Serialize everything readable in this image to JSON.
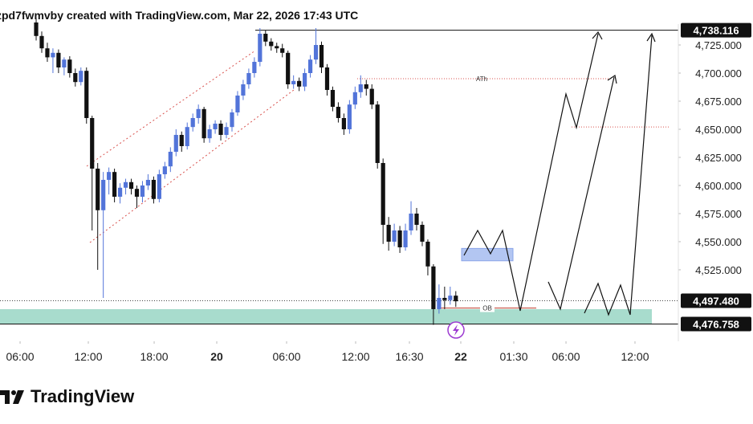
{
  "chart_data": {
    "type": "candlestick",
    "title": "zpd7fwmvby created with TradingView.com, Mar 22, 2026 17:43 UTC",
    "footer": "TradingView",
    "up_color": "#5274d9",
    "down_color": "#111111",
    "ylim": [
      4461.4,
      4765
    ],
    "yticks": [
      {
        "value": 4525,
        "label": "4,525.000"
      },
      {
        "value": 4550,
        "label": "4,550.000"
      },
      {
        "value": 4575,
        "label": "4,575.000"
      },
      {
        "value": 4600,
        "label": "4,600.000"
      },
      {
        "value": 4625,
        "label": "4,625.000"
      },
      {
        "value": 4650,
        "label": "4,650.000"
      },
      {
        "value": 4675,
        "label": "4,675.000"
      },
      {
        "value": 4700,
        "label": "4,700.000"
      },
      {
        "value": 4725,
        "label": "4,725.000"
      }
    ],
    "xlim": [
      -6.46,
      114.77
    ],
    "xticks": [
      {
        "value": -2.87,
        "label": "06:00"
      },
      {
        "value": 9.32,
        "label": "12:00"
      },
      {
        "value": 21.09,
        "label": "18:00"
      },
      {
        "value": 32.28,
        "label": "20"
      },
      {
        "value": 44.76,
        "label": "06:00"
      },
      {
        "value": 57.1,
        "label": "12:00"
      },
      {
        "value": 66.71,
        "label": "16:30"
      },
      {
        "value": 75.89,
        "label": "22"
      },
      {
        "value": 85.36,
        "label": "01:30"
      },
      {
        "value": 94.69,
        "label": "06:00"
      },
      {
        "value": 107.02,
        "label": "12:00"
      }
    ],
    "price_lines": [
      {
        "value": 4738.116,
        "label": "4,738.116"
      },
      {
        "value": 4497.48,
        "label": "4,497.480"
      },
      {
        "value": 4476.758,
        "label": "4,476.758"
      }
    ],
    "demand_zone": [
      4476.758,
      4490
    ],
    "target_box": [
      4533,
      4544
    ],
    "ath_level": {
      "value": 4695,
      "label": "ATh"
    },
    "ob_level": {
      "value": 4491,
      "label": "OB"
    },
    "resistance_level": 4652,
    "ohlc": [
      [
        4745,
        4749,
        4729,
        4733
      ],
      [
        4733,
        4737,
        4718,
        4722
      ],
      [
        4722,
        4727,
        4710,
        4714
      ],
      [
        4714,
        4722,
        4700,
        4718
      ],
      [
        4718,
        4721,
        4700,
        4705
      ],
      [
        4705,
        4714,
        4698,
        4712
      ],
      [
        4712,
        4715,
        4696,
        4700
      ],
      [
        4700,
        4704,
        4688,
        4692
      ],
      [
        4692,
        4705,
        4689,
        4702
      ],
      [
        4702,
        4705,
        4655,
        4660
      ],
      [
        4660,
        4662,
        4560,
        4615
      ],
      [
        4615,
        4620,
        4525,
        4578
      ],
      [
        4578,
        4612,
        4500,
        4605
      ],
      [
        4605,
        4616,
        4592,
        4612
      ],
      [
        4612,
        4615,
        4585,
        4590
      ],
      [
        4590,
        4602,
        4584,
        4598
      ],
      [
        4598,
        4606,
        4592,
        4603
      ],
      [
        4603,
        4606,
        4592,
        4597
      ],
      [
        4597,
        4600,
        4580,
        4590
      ],
      [
        4590,
        4604,
        4585,
        4600
      ],
      [
        4600,
        4610,
        4596,
        4605
      ],
      [
        4605,
        4608,
        4584,
        4588
      ],
      [
        4588,
        4614,
        4585,
        4610
      ],
      [
        4610,
        4621,
        4606,
        4617
      ],
      [
        4617,
        4634,
        4612,
        4630
      ],
      [
        4630,
        4650,
        4626,
        4645
      ],
      [
        4645,
        4648,
        4630,
        4635
      ],
      [
        4635,
        4656,
        4632,
        4652
      ],
      [
        4652,
        4664,
        4648,
        4660
      ],
      [
        4660,
        4672,
        4655,
        4668
      ],
      [
        4668,
        4670,
        4638,
        4642
      ],
      [
        4642,
        4654,
        4638,
        4650
      ],
      [
        4650,
        4658,
        4646,
        4655
      ],
      [
        4655,
        4658,
        4640,
        4645
      ],
      [
        4645,
        4656,
        4642,
        4652
      ],
      [
        4652,
        4668,
        4648,
        4665
      ],
      [
        4665,
        4684,
        4662,
        4680
      ],
      [
        4680,
        4694,
        4676,
        4690
      ],
      [
        4690,
        4704,
        4686,
        4700
      ],
      [
        4700,
        4714,
        4696,
        4710
      ],
      [
        4710,
        4740,
        4706,
        4735
      ],
      [
        4735,
        4738,
        4724,
        4728
      ],
      [
        4728,
        4731,
        4720,
        4724
      ],
      [
        4724,
        4727,
        4718,
        4722
      ],
      [
        4722,
        4726,
        4714,
        4718
      ],
      [
        4718,
        4720,
        4686,
        4690
      ],
      [
        4690,
        4698,
        4686,
        4693
      ],
      [
        4693,
        4696,
        4684,
        4688
      ],
      [
        4688,
        4704,
        4684,
        4700
      ],
      [
        4700,
        4716,
        4696,
        4712
      ],
      [
        4712,
        4740,
        4708,
        4725
      ],
      [
        4725,
        4728,
        4700,
        4705
      ],
      [
        4705,
        4708,
        4680,
        4685
      ],
      [
        4685,
        4688,
        4666,
        4670
      ],
      [
        4670,
        4674,
        4656,
        4660
      ],
      [
        4660,
        4664,
        4645,
        4650
      ],
      [
        4650,
        4676,
        4646,
        4672
      ],
      [
        4672,
        4688,
        4668,
        4683
      ],
      [
        4683,
        4698,
        4678,
        4690
      ],
      [
        4690,
        4694,
        4680,
        4686
      ],
      [
        4686,
        4690,
        4668,
        4672
      ],
      [
        4672,
        4675,
        4615,
        4620
      ],
      [
        4620,
        4624,
        4548,
        4565
      ],
      [
        4565,
        4572,
        4542,
        4550
      ],
      [
        4550,
        4566,
        4546,
        4560
      ],
      [
        4560,
        4564,
        4540,
        4545
      ],
      [
        4545,
        4566,
        4542,
        4560
      ],
      [
        4560,
        4586,
        4556,
        4575
      ],
      [
        4575,
        4580,
        4560,
        4565
      ],
      [
        4565,
        4568,
        4546,
        4550
      ],
      [
        4550,
        4552,
        4520,
        4528
      ],
      [
        4528,
        4530,
        4476,
        4490
      ],
      [
        4490,
        4512,
        4486,
        4500
      ],
      [
        4500,
        4510,
        4490,
        4498
      ],
      [
        4498,
        4510,
        4494,
        4502
      ],
      [
        4502,
        4506,
        4492,
        4497
      ]
    ]
  }
}
